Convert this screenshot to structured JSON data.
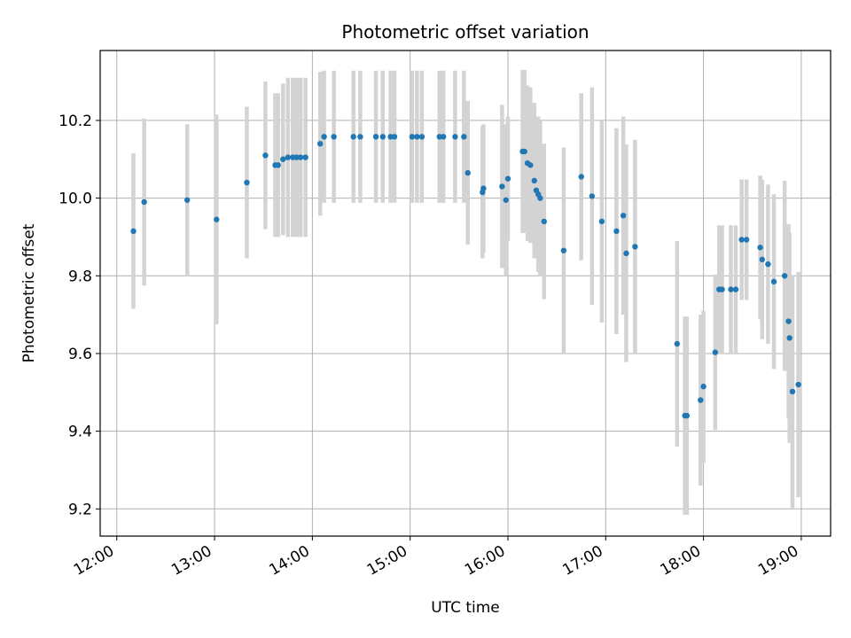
{
  "chart_data": {
    "type": "scatter",
    "title": "Photometric offset variation",
    "xlabel": "UTC time",
    "ylabel": "Photometric offset",
    "x_unit": "hours UTC",
    "xlim": [
      11.83,
      19.3
    ],
    "ylim": [
      9.13,
      10.38
    ],
    "x_ticks": [
      12,
      13,
      14,
      15,
      16,
      17,
      18,
      19
    ],
    "x_tick_labels": [
      "12:00",
      "13:00",
      "14:00",
      "15:00",
      "16:00",
      "17:00",
      "18:00",
      "19:00"
    ],
    "y_ticks": [
      9.2,
      9.4,
      9.6,
      9.8,
      10.0,
      10.2
    ],
    "y_tick_labels": [
      "9.2",
      "9.4",
      "9.6",
      "9.8",
      "10.0",
      "10.2"
    ],
    "grid": true,
    "colors": {
      "point": "#1f77b4",
      "errorbar": "#d3d3d3",
      "grid": "#b0b0b0"
    },
    "points": [
      [
        12.17,
        9.915,
        0.2
      ],
      [
        12.28,
        9.99,
        0.215
      ],
      [
        12.72,
        9.995,
        0.195
      ],
      [
        13.02,
        9.945,
        0.27
      ],
      [
        13.33,
        10.04,
        0.195
      ],
      [
        13.52,
        10.11,
        0.19
      ],
      [
        13.62,
        10.085,
        0.185
      ],
      [
        13.65,
        10.085,
        0.185
      ],
      [
        13.7,
        10.1,
        0.195
      ],
      [
        13.75,
        10.105,
        0.205
      ],
      [
        13.8,
        10.105,
        0.205
      ],
      [
        13.84,
        10.105,
        0.205
      ],
      [
        13.88,
        10.105,
        0.205
      ],
      [
        13.93,
        10.105,
        0.205
      ],
      [
        14.08,
        10.14,
        0.185
      ],
      [
        14.12,
        10.158,
        0.17
      ],
      [
        14.22,
        10.158,
        0.17
      ],
      [
        14.42,
        10.158,
        0.17
      ],
      [
        14.49,
        10.158,
        0.17
      ],
      [
        14.65,
        10.158,
        0.17
      ],
      [
        14.72,
        10.158,
        0.17
      ],
      [
        14.8,
        10.158,
        0.17
      ],
      [
        14.84,
        10.158,
        0.17
      ],
      [
        15.02,
        10.158,
        0.17
      ],
      [
        15.07,
        10.158,
        0.17
      ],
      [
        15.12,
        10.158,
        0.17
      ],
      [
        15.3,
        10.158,
        0.17
      ],
      [
        15.34,
        10.158,
        0.17
      ],
      [
        15.46,
        10.158,
        0.17
      ],
      [
        15.55,
        10.158,
        0.17
      ],
      [
        15.59,
        10.065,
        0.185
      ],
      [
        15.74,
        10.015,
        0.17
      ],
      [
        15.75,
        10.025,
        0.165
      ],
      [
        15.94,
        10.03,
        0.21
      ],
      [
        15.98,
        9.995,
        0.195
      ],
      [
        16.0,
        10.05,
        0.16
      ],
      [
        16.15,
        10.12,
        0.21
      ],
      [
        16.17,
        10.12,
        0.21
      ],
      [
        16.2,
        10.09,
        0.2
      ],
      [
        16.23,
        10.085,
        0.2
      ],
      [
        16.27,
        10.045,
        0.2
      ],
      [
        16.29,
        10.02,
        0.175
      ],
      [
        16.31,
        10.01,
        0.2
      ],
      [
        16.33,
        10.0,
        0.2
      ],
      [
        16.37,
        9.94,
        0.2
      ],
      [
        16.57,
        9.865,
        0.265
      ],
      [
        16.75,
        10.055,
        0.215
      ],
      [
        16.86,
        10.005,
        0.28
      ],
      [
        16.96,
        9.94,
        0.26
      ],
      [
        17.11,
        9.915,
        0.265
      ],
      [
        17.18,
        9.955,
        0.255
      ],
      [
        17.21,
        9.858,
        0.28
      ],
      [
        17.3,
        9.875,
        0.275
      ],
      [
        17.73,
        9.625,
        0.265
      ],
      [
        17.81,
        9.44,
        0.255
      ],
      [
        17.83,
        9.44,
        0.255
      ],
      [
        17.97,
        9.48,
        0.22
      ],
      [
        18.0,
        9.515,
        0.195
      ],
      [
        18.12,
        9.603,
        0.2
      ],
      [
        18.16,
        9.765,
        0.165
      ],
      [
        18.19,
        9.765,
        0.165
      ],
      [
        18.28,
        9.765,
        0.165
      ],
      [
        18.33,
        9.765,
        0.165
      ],
      [
        18.39,
        9.893,
        0.155
      ],
      [
        18.44,
        9.893,
        0.155
      ],
      [
        18.58,
        9.873,
        0.185
      ],
      [
        18.6,
        9.842,
        0.205
      ],
      [
        18.66,
        9.83,
        0.205
      ],
      [
        18.72,
        9.785,
        0.225
      ],
      [
        18.83,
        9.8,
        0.245
      ],
      [
        18.87,
        9.683,
        0.25
      ],
      [
        18.88,
        9.64,
        0.27
      ],
      [
        18.91,
        9.502,
        0.3
      ],
      [
        18.97,
        9.52,
        0.29
      ]
    ]
  }
}
